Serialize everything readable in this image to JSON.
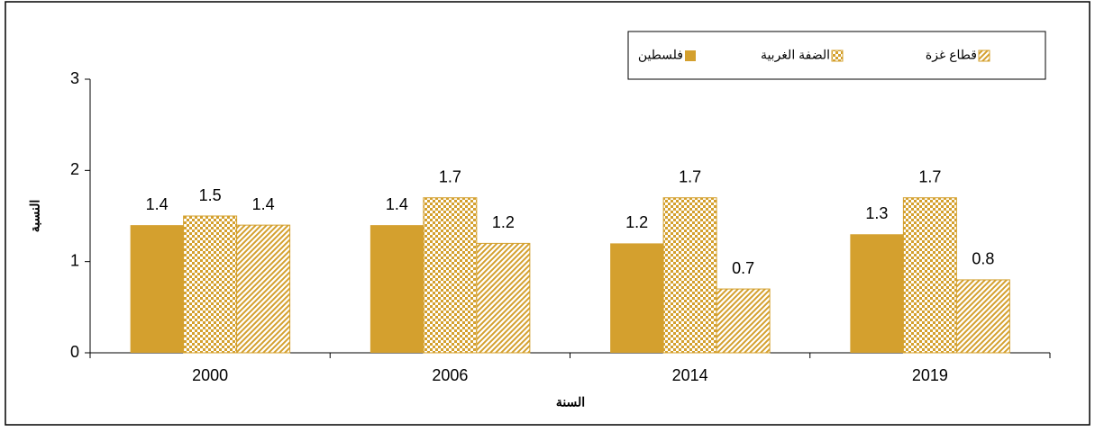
{
  "chart_data": {
    "type": "bar",
    "xlabel": "السنة",
    "ylabel": "النسبة",
    "categories": [
      "2000",
      "2006",
      "2014",
      "2019"
    ],
    "series": [
      {
        "name": "فلسطين",
        "color": "#d4a02e",
        "pattern": "solid",
        "values": [
          1.4,
          1.4,
          1.2,
          1.3
        ]
      },
      {
        "name": "الضفة الغربية",
        "color": "#d4a02e",
        "pattern": "checker",
        "values": [
          1.5,
          1.7,
          1.7,
          1.7
        ]
      },
      {
        "name": "قطاع غزة",
        "color": "#d4a02e",
        "pattern": "hatch",
        "values": [
          1.4,
          1.2,
          0.7,
          0.8
        ]
      }
    ],
    "ylim": [
      0,
      3
    ],
    "yticks": [
      0,
      1,
      2,
      3
    ],
    "grid": false
  }
}
